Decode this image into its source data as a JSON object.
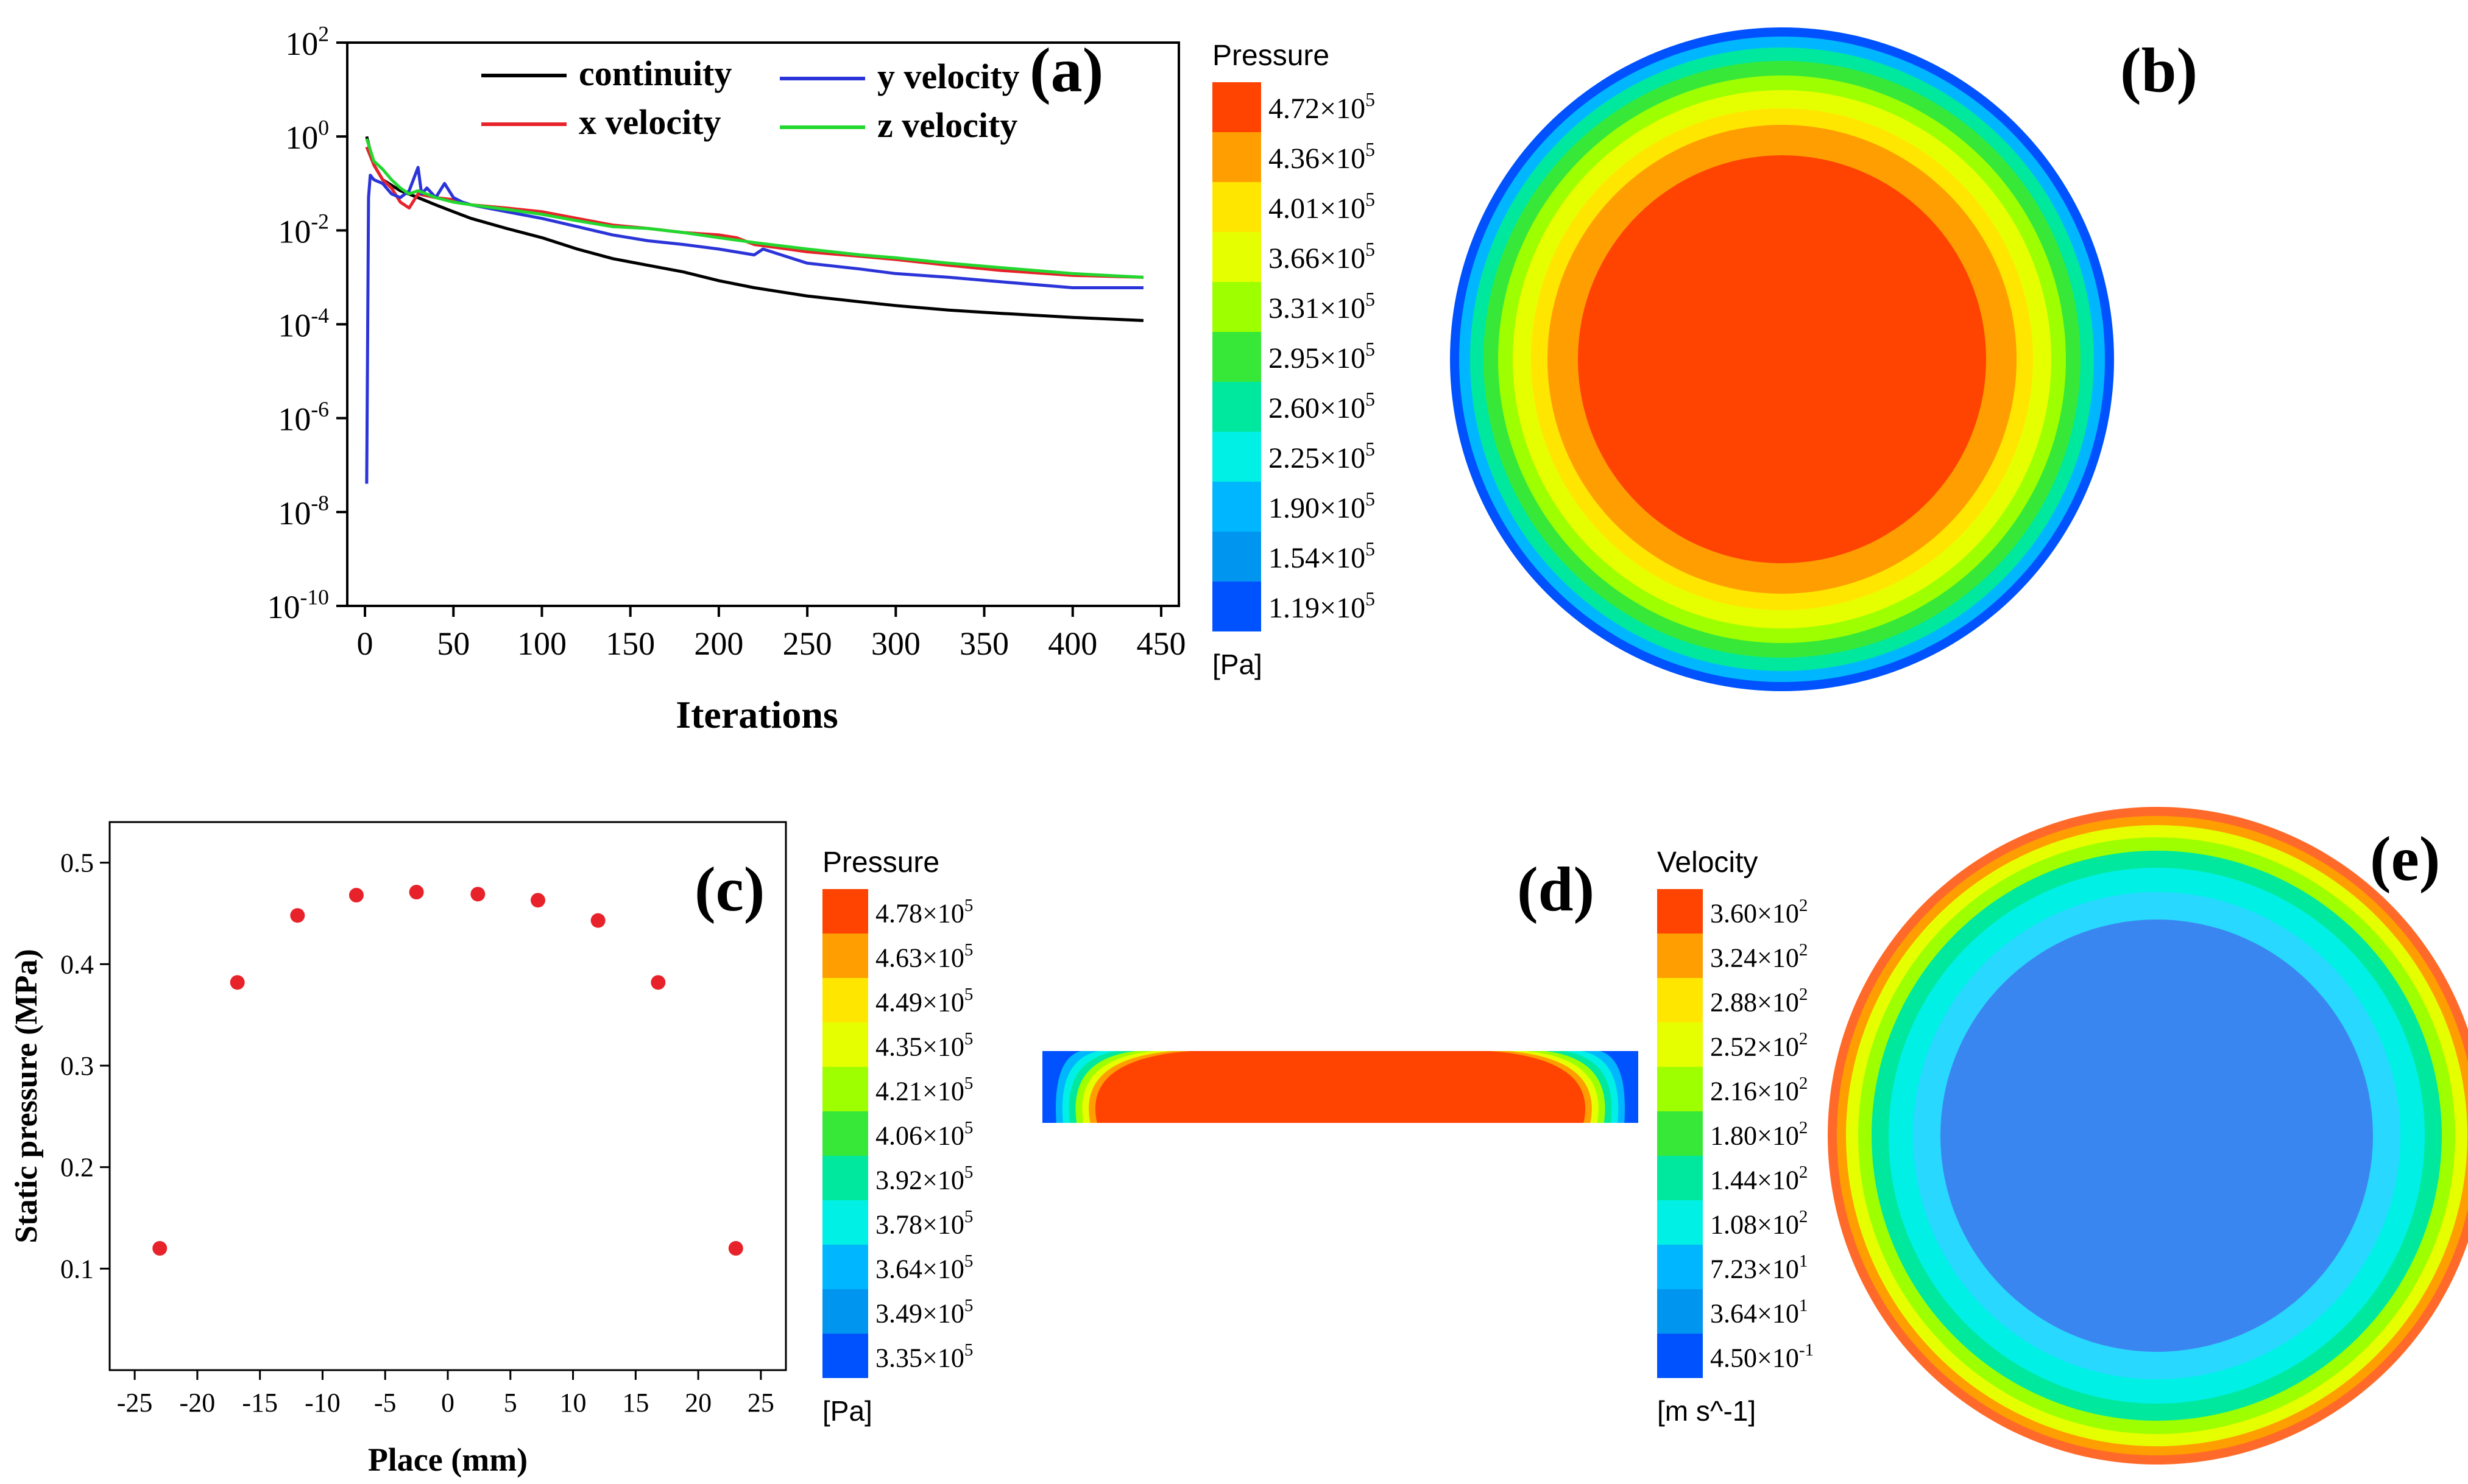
{
  "panels": {
    "a": "(a)",
    "b": "(b)",
    "c": "(c)",
    "d": "(d)",
    "e": "(e)"
  },
  "chart_data": [
    {
      "id": "a",
      "type": "line",
      "xlabel": "Iterations",
      "ylabel": "",
      "xlim": [
        -10,
        460
      ],
      "ylim_log10": [
        -10,
        2
      ],
      "yscale": "log",
      "xticks": [
        0,
        50,
        100,
        150,
        200,
        250,
        300,
        350,
        400,
        450
      ],
      "yticks_exp": [
        -10,
        -8,
        -6,
        -4,
        -2,
        0,
        2
      ],
      "legend": "top",
      "series": [
        {
          "name": "continuity",
          "color": "#000000",
          "x": [
            1,
            5,
            10,
            20,
            30,
            40,
            50,
            60,
            80,
            100,
            120,
            140,
            160,
            180,
            200,
            220,
            250,
            280,
            300,
            330,
            360,
            400,
            440
          ],
          "y": [
            1.0,
            0.25,
            0.12,
            0.07,
            0.05,
            0.035,
            0.025,
            0.018,
            0.011,
            0.007,
            0.004,
            0.0025,
            0.0018,
            0.0013,
            0.00085,
            0.0006,
            0.0004,
            0.0003,
            0.00025,
            0.0002,
            0.00017,
            0.00014,
            0.00012
          ]
        },
        {
          "name": "x velocity",
          "color": "#e8222a",
          "x": [
            1,
            5,
            10,
            15,
            20,
            25,
            30,
            40,
            50,
            60,
            80,
            100,
            120,
            140,
            160,
            180,
            200,
            210,
            220,
            250,
            280,
            300,
            330,
            360,
            400,
            440
          ],
          "y": [
            0.6,
            0.25,
            0.12,
            0.08,
            0.04,
            0.03,
            0.06,
            0.05,
            0.045,
            0.035,
            0.03,
            0.025,
            0.018,
            0.013,
            0.011,
            0.009,
            0.008,
            0.007,
            0.005,
            0.0035,
            0.0028,
            0.0024,
            0.0018,
            0.0014,
            0.0011,
            0.001
          ]
        },
        {
          "name": "y velocity",
          "color": "#2b34d8",
          "x": [
            1,
            2,
            3,
            5,
            10,
            15,
            20,
            25,
            30,
            32,
            35,
            40,
            45,
            50,
            55,
            60,
            80,
            100,
            120,
            140,
            160,
            180,
            200,
            220,
            225,
            250,
            280,
            300,
            330,
            360,
            400,
            440
          ],
          "y": [
            4e-08,
            0.05,
            0.15,
            0.12,
            0.1,
            0.06,
            0.05,
            0.07,
            0.22,
            0.06,
            0.08,
            0.05,
            0.1,
            0.05,
            0.04,
            0.035,
            0.025,
            0.018,
            0.012,
            0.008,
            0.006,
            0.005,
            0.004,
            0.003,
            0.004,
            0.002,
            0.0015,
            0.0012,
            0.001,
            0.0008,
            0.0006,
            0.0006
          ]
        },
        {
          "name": "z velocity",
          "color": "#22d82e",
          "x": [
            1,
            5,
            10,
            15,
            20,
            25,
            30,
            40,
            50,
            60,
            80,
            100,
            120,
            140,
            160,
            180,
            200,
            220,
            250,
            280,
            300,
            330,
            360,
            400,
            440
          ],
          "y": [
            0.9,
            0.3,
            0.2,
            0.12,
            0.08,
            0.06,
            0.07,
            0.05,
            0.04,
            0.035,
            0.028,
            0.022,
            0.016,
            0.012,
            0.011,
            0.009,
            0.007,
            0.0055,
            0.004,
            0.003,
            0.0026,
            0.002,
            0.0016,
            0.0012,
            0.001
          ]
        }
      ]
    },
    {
      "id": "c",
      "type": "scatter",
      "xlabel": "Place (mm)",
      "ylabel": "Static pressure (MPa)",
      "xlim": [
        -27,
        27
      ],
      "ylim": [
        0.0,
        0.54
      ],
      "xticks": [
        -25,
        -20,
        -15,
        -10,
        -5,
        0,
        5,
        10,
        15,
        20,
        25
      ],
      "yticks": [
        0.1,
        0.2,
        0.3,
        0.4,
        0.5
      ],
      "grid": false,
      "series": [
        {
          "color": "#e8222a",
          "x": [
            -23,
            -16.8,
            -12,
            -7.3,
            -2.5,
            2.4,
            7.2,
            12,
            16.8,
            23
          ],
          "y": [
            0.12,
            0.382,
            0.448,
            0.468,
            0.471,
            0.469,
            0.463,
            0.443,
            0.382,
            0.12
          ]
        }
      ]
    }
  ],
  "legends": {
    "b": {
      "title": "Pressure",
      "unit": "[Pa]",
      "labels": [
        {
          "m": "4.72",
          "e": "5"
        },
        {
          "m": "4.36",
          "e": "5"
        },
        {
          "m": "4.01",
          "e": "5"
        },
        {
          "m": "3.66",
          "e": "5"
        },
        {
          "m": "3.31",
          "e": "5"
        },
        {
          "m": "2.95",
          "e": "5"
        },
        {
          "m": "2.60",
          "e": "5"
        },
        {
          "m": "2.25",
          "e": "5"
        },
        {
          "m": "1.90",
          "e": "5"
        },
        {
          "m": "1.54",
          "e": "5"
        },
        {
          "m": "1.19",
          "e": "5"
        }
      ]
    },
    "c": {
      "title": "Pressure",
      "unit": "[Pa]",
      "labels": [
        {
          "m": "4.78",
          "e": "5"
        },
        {
          "m": "4.63",
          "e": "5"
        },
        {
          "m": "4.49",
          "e": "5"
        },
        {
          "m": "4.35",
          "e": "5"
        },
        {
          "m": "4.21",
          "e": "5"
        },
        {
          "m": "4.06",
          "e": "5"
        },
        {
          "m": "3.92",
          "e": "5"
        },
        {
          "m": "3.78",
          "e": "5"
        },
        {
          "m": "3.64",
          "e": "5"
        },
        {
          "m": "3.49",
          "e": "5"
        },
        {
          "m": "3.35",
          "e": "5"
        }
      ]
    },
    "d": {
      "title": "Velocity",
      "unit": "[m s^-1]",
      "labels": [
        {
          "m": "3.60",
          "e": "2"
        },
        {
          "m": "3.24",
          "e": "2"
        },
        {
          "m": "2.88",
          "e": "2"
        },
        {
          "m": "2.52",
          "e": "2"
        },
        {
          "m": "2.16",
          "e": "2"
        },
        {
          "m": "1.80",
          "e": "2"
        },
        {
          "m": "1.44",
          "e": "2"
        },
        {
          "m": "1.08",
          "e": "2"
        },
        {
          "m": "7.23",
          "e": "1"
        },
        {
          "m": "3.64",
          "e": "1"
        },
        {
          "m": "4.50",
          "e": "-1"
        }
      ]
    }
  },
  "colormap": [
    "#ff4300",
    "#ff9e00",
    "#ffe600",
    "#e6ff00",
    "#9eff00",
    "#38e838",
    "#00e89e",
    "#00f0e6",
    "#00b7ff",
    "#0096f0",
    "#0052ff"
  ]
}
